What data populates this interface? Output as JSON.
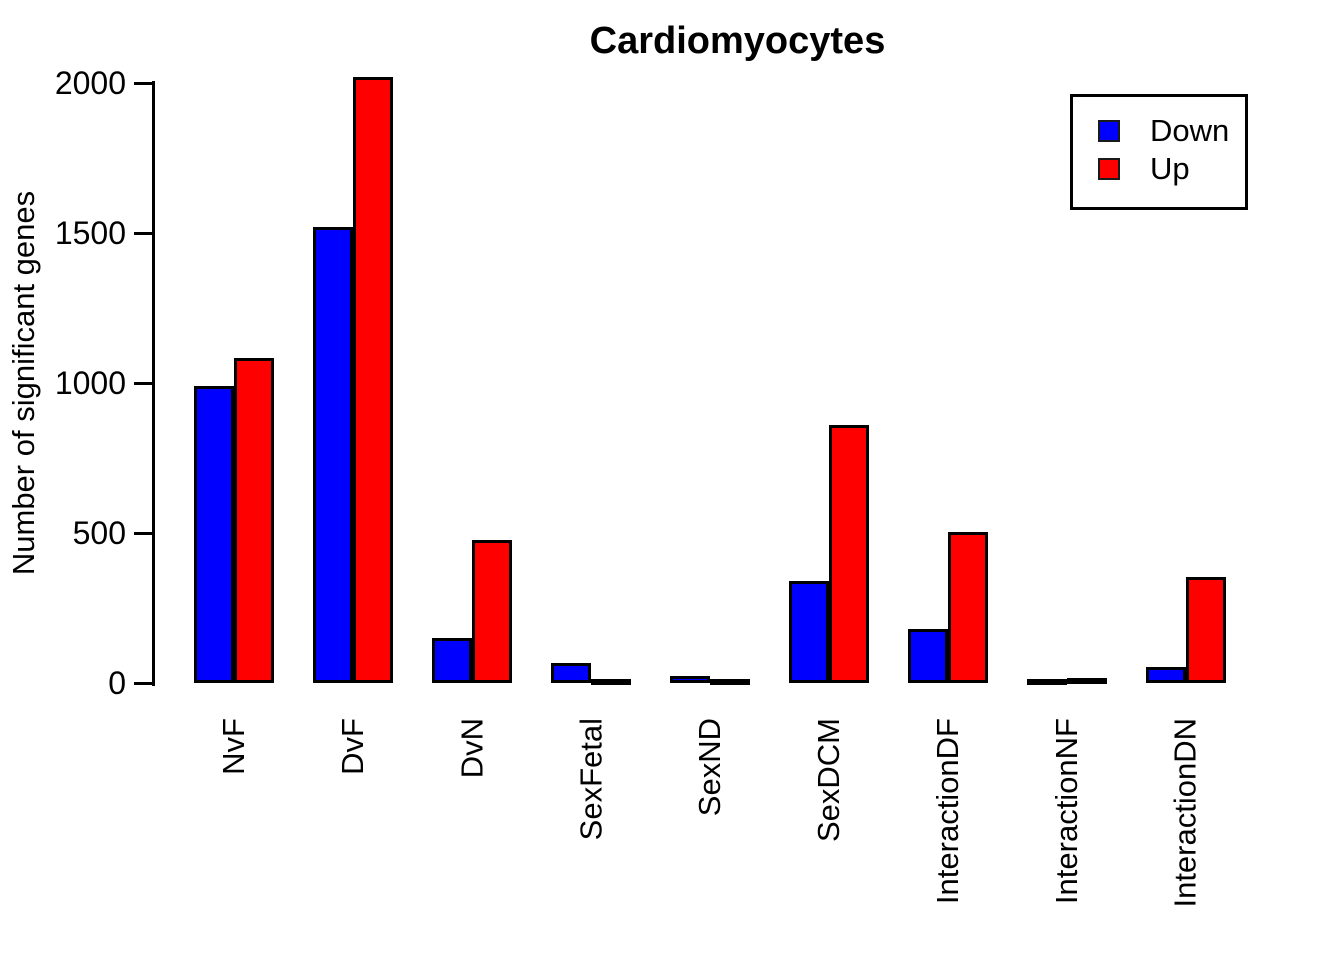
{
  "title": "Cardiomyocytes",
  "y_axis": {
    "label": "Number of significant genes",
    "ticks": [
      "0",
      "500",
      "1000",
      "1500",
      "2000"
    ]
  },
  "legend": {
    "items": [
      {
        "label": "Down",
        "color": "#0000ff"
      },
      {
        "label": "Up",
        "color": "#ff0000"
      }
    ]
  },
  "chart_data": {
    "type": "bar",
    "title": "Cardiomyocytes",
    "xlabel": "",
    "ylabel": "Number of significant genes",
    "categories": [
      "NvF",
      "DvF",
      "DvN",
      "SexFetal",
      "SexND",
      "SexDCM",
      "InteractionDF",
      "InteractionNF",
      "InteractionDN"
    ],
    "series": [
      {
        "name": "Down",
        "color": "#0000ff",
        "values": [
          990,
          1520,
          150,
          68,
          25,
          340,
          180,
          8,
          52
        ]
      },
      {
        "name": "Up",
        "color": "#ff0000",
        "values": [
          1085,
          2020,
          478,
          8,
          3,
          860,
          505,
          17,
          355
        ]
      }
    ],
    "ylim": [
      0,
      2000
    ],
    "yticks": [
      0,
      500,
      1000,
      1500,
      2000
    ],
    "grid": false,
    "legend_position": "top-right",
    "bar_border_color": "#000000",
    "background_color": "#ffffff"
  }
}
